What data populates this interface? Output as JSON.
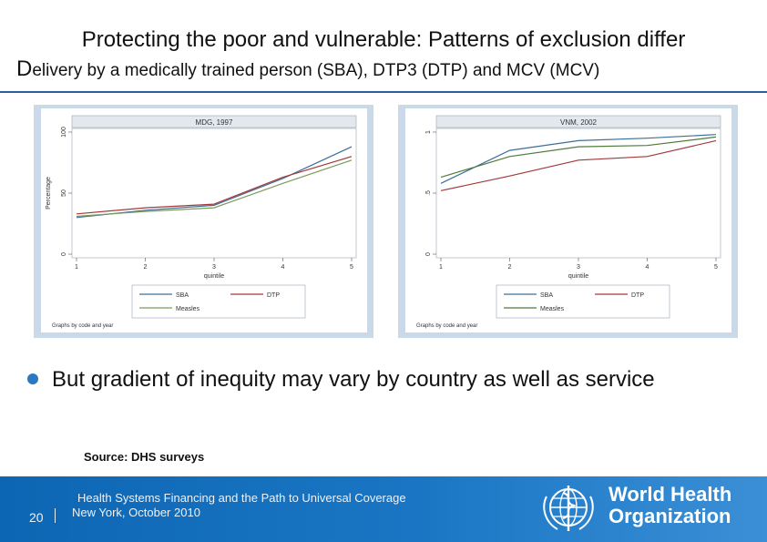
{
  "slide": {
    "title_first_letter": "D",
    "title_line1": "Protecting the poor and vulnerable: Patterns of exclusion differ",
    "title_line2_rest": "elivery by a medically trained person (SBA), DTP3 (DTP) and MCV (MCV)",
    "bullet": "But gradient of inequity may vary by country as well as service",
    "source": "Source: DHS surveys",
    "footer_line1": "Health Systems Financing and the Path to Universal Coverage",
    "footer_line2": "New York, October 2010",
    "page_number": "20",
    "org_line1": "World Health",
    "org_line2": "Organization",
    "colors": {
      "accent": "#2c5fa2",
      "footer": "#1a76c4",
      "chart_bg": "#c9d9ea"
    }
  },
  "chart_data": [
    {
      "type": "line",
      "title": "MDG, 1997",
      "xlabel": "quintile",
      "ylabel": "Percentage",
      "x": [
        1,
        2,
        3,
        4,
        5
      ],
      "ylim": [
        0,
        100
      ],
      "yticks": [
        "0",
        "50",
        "100"
      ],
      "series": [
        {
          "name": "SBA",
          "color": "#3e6f98",
          "values": [
            30,
            36,
            40,
            62,
            88
          ]
        },
        {
          "name": "DTP",
          "color": "#a23a3a",
          "values": [
            33,
            38,
            41,
            63,
            80
          ]
        },
        {
          "name": "Measles",
          "color": "#7a9a5c",
          "values": [
            31,
            35,
            38,
            58,
            77
          ]
        }
      ],
      "legend_position": "bottom",
      "note": "Graphs by code and year"
    },
    {
      "type": "line",
      "title": "VNM, 2002",
      "xlabel": "quintile",
      "ylabel": "",
      "x": [
        1,
        2,
        3,
        4,
        5
      ],
      "ylim": [
        0,
        1
      ],
      "yticks": [
        "0",
        ".5",
        "1"
      ],
      "series": [
        {
          "name": "SBA",
          "color": "#3e6f98",
          "values": [
            0.58,
            0.85,
            0.93,
            0.95,
            0.98
          ]
        },
        {
          "name": "DTP",
          "color": "#a23a3a",
          "values": [
            0.52,
            0.64,
            0.77,
            0.8,
            0.93
          ]
        },
        {
          "name": "Measles",
          "color": "#4f7a3c",
          "values": [
            0.63,
            0.8,
            0.88,
            0.89,
            0.96
          ]
        }
      ],
      "legend_position": "bottom",
      "note": "Graphs by code and year"
    }
  ]
}
